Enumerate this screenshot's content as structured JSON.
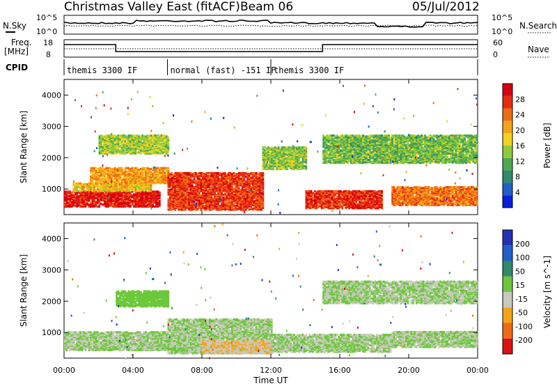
{
  "header": {
    "title": "Christmas Valley East (fitACF)",
    "beam": "Beam 06",
    "date": "05/Jul/2012"
  },
  "noise_panel": {
    "left_label": "N.Sky",
    "right_label": "N.Search",
    "left_ticks": [
      "10^5",
      "10^0"
    ],
    "right_ticks": [
      "10^5",
      "10^0"
    ]
  },
  "freq_panel": {
    "left_label_1": "Freq.",
    "left_label_2": "[MHz]",
    "right_label": "Nave",
    "left_ticks": [
      "18",
      "8"
    ],
    "right_ticks": [
      "60",
      "0"
    ]
  },
  "cpid": {
    "label": "CPID",
    "segments": [
      {
        "text": "themis 3300 IF",
        "start": 0,
        "end": 6
      },
      {
        "text": "normal (fast) -151 IF",
        "start": 6,
        "end": 12
      },
      {
        "text": "themis 3300 IF",
        "start": 12,
        "end": 24
      }
    ]
  },
  "colors": {
    "power": [
      "#0a1fe0",
      "#1f5fc8",
      "#2e8a6a",
      "#4fa84f",
      "#8ccd3c",
      "#f2d21e",
      "#f5a319",
      "#f06a12",
      "#e82a10",
      "#d8000f"
    ],
    "velocity": [
      "#e01010",
      "#f06a12",
      "#f5a319",
      "#c9c9bd",
      "#6cc83a",
      "#2e8a6a",
      "#1f5fc8",
      "#2331b8"
    ]
  },
  "chart_data": [
    {
      "type": "heatmap",
      "title": "",
      "xlabel": "Time UT",
      "ylabel": "Slant Range [km]",
      "x_ticks": [
        "00:00",
        "04:00",
        "08:00",
        "12:00",
        "16:00",
        "20:00",
        "00:00"
      ],
      "y_ticks": [
        "1000",
        "2000",
        "3000",
        "4000"
      ],
      "xlim": [
        0,
        24
      ],
      "ylim": [
        180,
        4500
      ],
      "colorbar": {
        "label": "Power [dB]",
        "ticks": [
          "4",
          "8",
          "12",
          "16",
          "20",
          "24",
          "28"
        ],
        "range": [
          0,
          30
        ]
      },
      "echo_bands": [
        {
          "t0": 0.0,
          "t1": 5.5,
          "r0": 400,
          "r1": 900,
          "value": 27
        },
        {
          "t0": 0.5,
          "t1": 5.0,
          "r0": 900,
          "r1": 1150,
          "value": 18
        },
        {
          "t0": 1.5,
          "t1": 6.0,
          "r0": 1150,
          "r1": 1650,
          "value": 20
        },
        {
          "t0": 2.0,
          "t1": 6.0,
          "r0": 2100,
          "r1": 2700,
          "value": 14
        },
        {
          "t0": 6.0,
          "t1": 11.5,
          "r0": 300,
          "r1": 1500,
          "value": 25
        },
        {
          "t0": 11.5,
          "t1": 14.0,
          "r0": 1600,
          "r1": 2300,
          "value": 13
        },
        {
          "t0": 14.0,
          "t1": 18.5,
          "r0": 350,
          "r1": 900,
          "value": 26
        },
        {
          "t0": 15.0,
          "t1": 24.0,
          "r0": 1800,
          "r1": 2700,
          "value": 12
        },
        {
          "t0": 19.0,
          "t1": 24.0,
          "r0": 450,
          "r1": 1050,
          "value": 22
        }
      ]
    },
    {
      "type": "heatmap",
      "title": "",
      "xlabel": "Time UT",
      "ylabel": "Slant Range [km]",
      "x_ticks": [
        "00:00",
        "04:00",
        "08:00",
        "12:00",
        "16:00",
        "20:00",
        "00:00"
      ],
      "y_ticks": [
        "1000",
        "2000",
        "3000",
        "4000"
      ],
      "xlim": [
        0,
        24
      ],
      "ylim": [
        180,
        4500
      ],
      "colorbar": {
        "label": "Velocity [m s^-1]",
        "ticks": [
          "-200",
          "-100",
          "-50",
          "-15",
          "15",
          "50",
          "100",
          "200"
        ],
        "range": [
          -250,
          250
        ]
      },
      "echo_bands": [
        {
          "t0": 0.0,
          "t1": 6.0,
          "r0": 400,
          "r1": 1000,
          "value": 0
        },
        {
          "t0": 3.0,
          "t1": 6.0,
          "r0": 1800,
          "r1": 2300,
          "value": 40
        },
        {
          "t0": 6.0,
          "t1": 12.0,
          "r0": 300,
          "r1": 1400,
          "value": 0
        },
        {
          "t0": 8.0,
          "t1": 12.0,
          "r0": 300,
          "r1": 700,
          "value": -60
        },
        {
          "t0": 12.0,
          "t1": 19.0,
          "r0": 350,
          "r1": 900,
          "value": 0
        },
        {
          "t0": 15.0,
          "t1": 24.0,
          "r0": 1900,
          "r1": 2600,
          "value": 0
        },
        {
          "t0": 19.0,
          "t1": 24.0,
          "r0": 500,
          "r1": 1000,
          "value": 0
        }
      ]
    }
  ]
}
